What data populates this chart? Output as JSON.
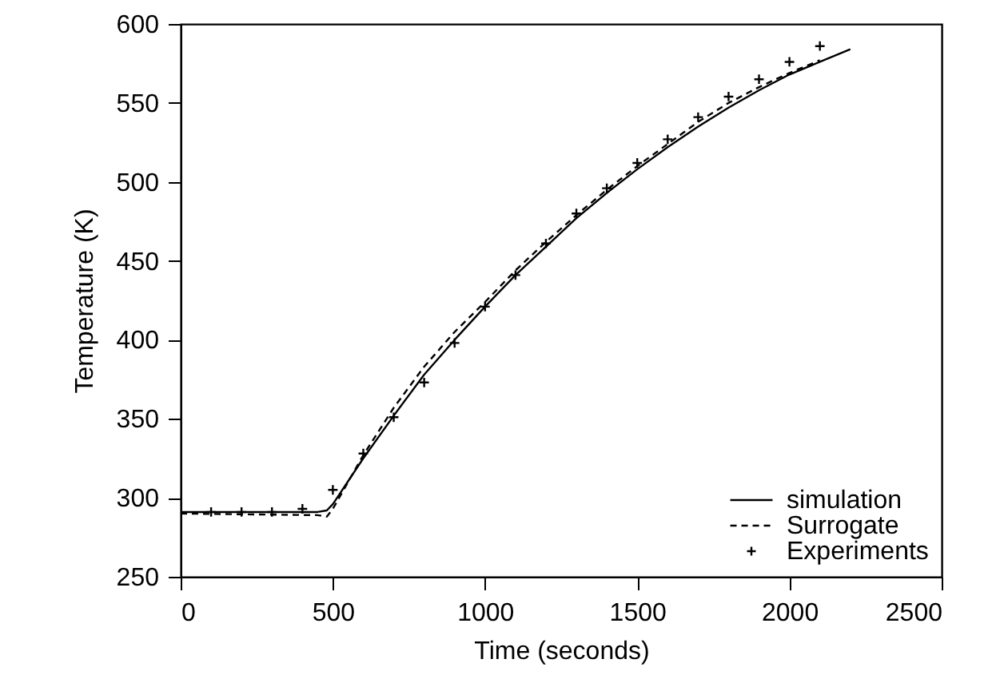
{
  "chart_data": {
    "type": "line",
    "xlabel": "Time (seconds)",
    "ylabel": "Temperature (K)",
    "x": [
      0,
      450,
      480,
      500,
      600,
      700,
      800,
      900,
      1000,
      1100,
      1200,
      1300,
      1400,
      1500,
      1600,
      1700,
      1800,
      1900,
      2000,
      2100,
      2200
    ],
    "xlim": [
      0,
      2500
    ],
    "xticks": [
      0,
      500,
      1000,
      1500,
      2000,
      2500
    ],
    "ylim": [
      250,
      600
    ],
    "yticks": [
      250,
      300,
      350,
      400,
      450,
      500,
      550,
      600
    ],
    "grid": false,
    "legend": "bottom right",
    "series": [
      {
        "name": "simulation",
        "line_style": "solid",
        "color": "#000000",
        "values": [
          291,
          291,
          292,
          296,
          325,
          352,
          378,
          400,
          421,
          441,
          459,
          477,
          493,
          508,
          522,
          535,
          547,
          558,
          568,
          576,
          584
        ]
      },
      {
        "name": "Surrogate",
        "type": "line",
        "line_style": "dashed",
        "color": "#000000",
        "x": [
          0,
          450,
          480,
          500,
          600,
          700,
          800,
          900,
          1000,
          1100,
          1200,
          1300,
          1400,
          1500,
          1600,
          1700,
          1800,
          1900,
          2000,
          2100
        ],
        "values": [
          290,
          289,
          288,
          293,
          327,
          357,
          383,
          405,
          424,
          444,
          462,
          479,
          495,
          510,
          524,
          538,
          550,
          560,
          569,
          577
        ]
      },
      {
        "name": "Experiments",
        "type": "scatter",
        "marker": "cross",
        "color": "#000000",
        "x": [
          100,
          200,
          300,
          400,
          500,
          600,
          700,
          800,
          900,
          1000,
          1100,
          1200,
          1300,
          1400,
          1500,
          1600,
          1700,
          1800,
          1900,
          2000,
          2100
        ],
        "values": [
          291,
          291,
          291,
          293,
          305,
          328,
          351,
          373,
          398,
          421,
          441,
          461,
          480,
          496,
          512,
          527,
          541,
          554,
          565,
          576,
          586
        ]
      }
    ]
  }
}
